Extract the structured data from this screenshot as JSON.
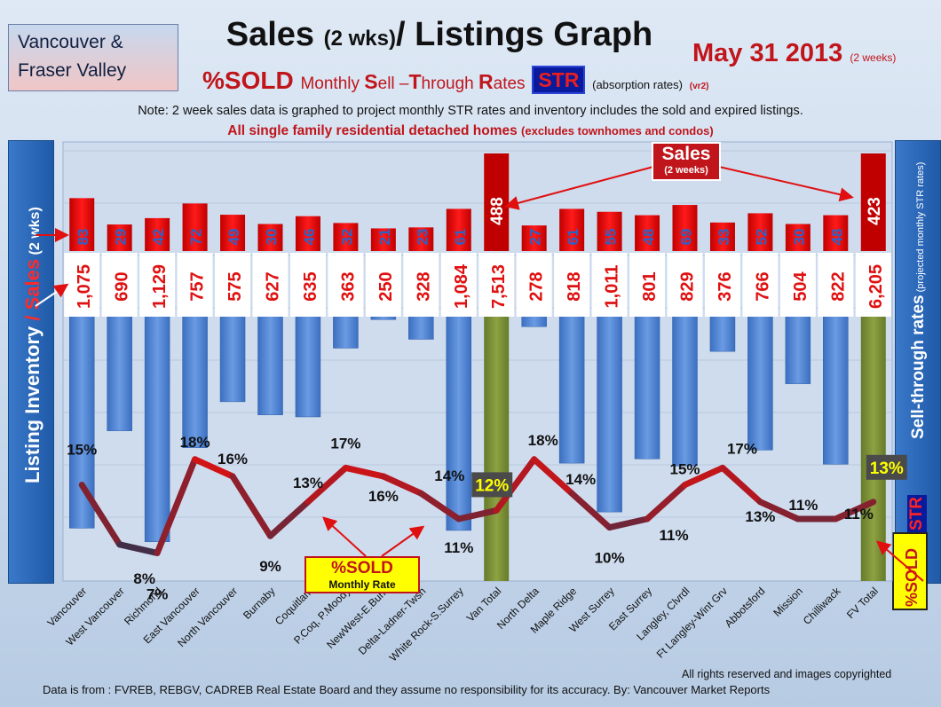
{
  "header": {
    "region_line1": "Vancouver &",
    "region_line2": "Fraser Valley",
    "title_main": "Sales",
    "title_small": "(2 wks)",
    "title_rest": "/ Listings Graph",
    "date": "May 31 2013",
    "date_small": "(2 weeks)",
    "subtitle_pct": "%SOLD",
    "subtitle_m": "Monthly",
    "subtitle_S": "S",
    "subtitle_ell": "ell –",
    "subtitle_T": "T",
    "subtitle_hrough": "hrough",
    "subtitle_R": "R",
    "subtitle_ates": "ates",
    "subtitle_str": "STR",
    "subtitle_abs": "(absorption rates)",
    "subtitle_vr": "(vr2)",
    "note": "Note: 2 week sales data is graphed to project monthly STR rates and inventory includes the sold and expired listings.",
    "note2": "All single family residential detached homes",
    "note2_small": "(excludes townhomes and condos)"
  },
  "side": {
    "left_a": "Listing Inventory",
    "left_slash": " / ",
    "left_b": "Sales",
    "left_c": " (2 wks)",
    "right_a": "Sell-through rates",
    "right_b": " (projected monthly STR rates)",
    "right_str": "STR",
    "right_sold": "%SOLD"
  },
  "callouts": {
    "sold_a": "%SOLD",
    "sold_b": "Monthly Rate",
    "sales_a": "Sales",
    "sales_b": "(2 weeks)"
  },
  "footer": {
    "rights": "All rights reserved and  images copyrighted",
    "source": "Data is  from : FVREB, REBGV, CADREB Real Estate Board and they assume no responsibility  for its accuracy. By: Vancouver Market Reports"
  },
  "colors": {
    "inventory_bar": "#4f86d4",
    "total_bar": "#7a8f35",
    "sales_bar": "#e00000",
    "line_low": "#3b2f4a",
    "line_high": "#e01010",
    "accent_red": "#c0151b"
  },
  "chart_data": {
    "type": "bar",
    "categories": [
      "Vancouver",
      "West Vancouver",
      "Richmond",
      "East Vancouver",
      "North Vancouver",
      "Burnaby",
      "Coquitlam",
      "P.Coq, P.Moody",
      "NewWest-E.Burn",
      "Delta-Ladner-Twsn",
      "White Rock-S.Surrey",
      "Van Total",
      "North Delta",
      "Maple Ridge",
      "West Surrey",
      "East Surrey",
      "Langley, Clvrdl",
      "Ft Langley-Wint Grv",
      "Abbotsford",
      "Mission",
      "Chilliwack",
      "FV Total"
    ],
    "totals": [
      "Van Total",
      "FV Total"
    ],
    "series": [
      {
        "name": "Listing Inventory",
        "values": [
          1075,
          690,
          1129,
          757,
          575,
          627,
          635,
          363,
          250,
          328,
          1084,
          7513,
          278,
          818,
          1011,
          801,
          829,
          376,
          766,
          504,
          822,
          6205
        ],
        "labels": [
          "1,075",
          "690",
          "1,129",
          "757",
          "575",
          "627",
          "635",
          "363",
          "250",
          "328",
          "1,084",
          "7,513",
          "278",
          "818",
          "1,011",
          "801",
          "829",
          "376",
          "766",
          "504",
          "822",
          "6,205"
        ]
      },
      {
        "name": "Sales (2 wks)",
        "values": [
          83,
          29,
          42,
          72,
          49,
          30,
          46,
          32,
          21,
          23,
          61,
          488,
          27,
          61,
          55,
          48,
          69,
          33,
          52,
          30,
          48,
          423
        ]
      },
      {
        "name": "%SOLD Monthly Rate",
        "values": [
          15,
          8,
          7,
          18,
          16,
          9,
          13,
          17,
          16,
          14,
          11,
          12,
          18,
          14,
          10,
          11,
          15,
          17,
          13,
          11,
          11,
          13
        ],
        "labels": [
          "15%",
          "8%",
          "7%",
          "18%",
          "16%",
          "9%",
          "13%",
          "17%",
          "16%",
          "14%",
          "11%",
          "12%",
          "18%",
          "14%",
          "10%",
          "11%",
          "15%",
          "17%",
          "13%",
          "11%",
          "11%",
          "13%"
        ]
      }
    ],
    "grid": true
  }
}
